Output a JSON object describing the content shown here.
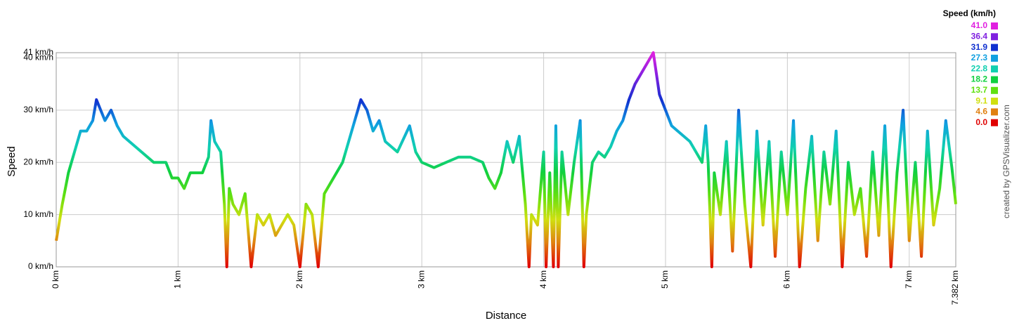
{
  "chart_data": {
    "type": "line",
    "xlabel": "Distance",
    "ylabel": "Speed",
    "x": [
      0,
      0.05,
      0.1,
      0.15,
      0.2,
      0.25,
      0.3,
      0.33,
      0.4,
      0.45,
      0.5,
      0.55,
      0.6,
      0.7,
      0.8,
      0.9,
      0.95,
      1.0,
      1.05,
      1.1,
      1.2,
      1.25,
      1.27,
      1.3,
      1.35,
      1.38,
      1.4,
      1.42,
      1.45,
      1.5,
      1.55,
      1.6,
      1.65,
      1.7,
      1.75,
      1.8,
      1.9,
      1.95,
      2.0,
      2.05,
      2.1,
      2.15,
      2.2,
      2.25,
      2.3,
      2.35,
      2.4,
      2.45,
      2.5,
      2.55,
      2.6,
      2.65,
      2.7,
      2.8,
      2.9,
      2.95,
      3.0,
      3.1,
      3.2,
      3.3,
      3.4,
      3.5,
      3.55,
      3.6,
      3.65,
      3.7,
      3.75,
      3.8,
      3.85,
      3.88,
      3.9,
      3.95,
      4.0,
      4.02,
      4.05,
      4.08,
      4.1,
      4.12,
      4.15,
      4.2,
      4.25,
      4.3,
      4.33,
      4.35,
      4.4,
      4.45,
      4.5,
      4.55,
      4.6,
      4.65,
      4.7,
      4.75,
      4.8,
      4.85,
      4.9,
      4.95,
      5.0,
      5.05,
      5.1,
      5.2,
      5.25,
      5.3,
      5.33,
      5.35,
      5.38,
      5.4,
      5.45,
      5.5,
      5.55,
      5.6,
      5.65,
      5.7,
      5.75,
      5.8,
      5.85,
      5.9,
      5.95,
      6.0,
      6.05,
      6.1,
      6.15,
      6.2,
      6.25,
      6.3,
      6.35,
      6.4,
      6.45,
      6.5,
      6.55,
      6.6,
      6.65,
      6.7,
      6.75,
      6.8,
      6.85,
      6.9,
      6.95,
      7.0,
      7.05,
      7.1,
      7.15,
      7.2,
      7.25,
      7.3,
      7.35,
      7.382
    ],
    "series": [
      {
        "name": "Speed",
        "values": [
          5,
          12,
          18,
          22,
          26,
          26,
          28,
          32,
          28,
          30,
          27,
          25,
          24,
          22,
          20,
          20,
          17,
          17,
          15,
          18,
          18,
          21,
          28,
          24,
          22,
          12,
          0,
          15,
          12,
          10,
          14,
          0,
          10,
          8,
          10,
          6,
          10,
          8,
          0,
          12,
          10,
          0,
          14,
          16,
          18,
          20,
          24,
          28,
          32,
          30,
          26,
          28,
          24,
          22,
          27,
          22,
          20,
          19,
          20,
          21,
          21,
          20,
          17,
          15,
          18,
          24,
          20,
          25,
          12,
          0,
          10,
          8,
          22,
          0,
          18,
          0,
          27,
          0,
          22,
          10,
          20,
          28,
          0,
          10,
          20,
          22,
          21,
          23,
          26,
          28,
          32,
          35,
          37,
          39,
          41,
          33,
          30,
          27,
          26,
          24,
          22,
          20,
          27,
          20,
          0,
          18,
          10,
          24,
          3,
          30,
          12,
          0,
          26,
          8,
          24,
          2,
          22,
          10,
          28,
          0,
          15,
          25,
          5,
          22,
          12,
          26,
          0,
          20,
          10,
          15,
          2,
          22,
          6,
          27,
          0,
          18,
          30,
          5,
          20,
          2,
          26,
          8,
          15,
          28,
          19,
          12
        ]
      }
    ],
    "xlim": [
      0,
      7.382
    ],
    "ylim": [
      0,
      41
    ],
    "xticks": [
      {
        "value": 0,
        "label": "0 km"
      },
      {
        "value": 1,
        "label": "1 km"
      },
      {
        "value": 2,
        "label": "2 km"
      },
      {
        "value": 3,
        "label": "3 km"
      },
      {
        "value": 4,
        "label": "4 km"
      },
      {
        "value": 5,
        "label": "5 km"
      },
      {
        "value": 6,
        "label": "6 km"
      },
      {
        "value": 7,
        "label": "7 km"
      },
      {
        "value": 7.382,
        "label": "7.382 km"
      }
    ],
    "yticks": [
      {
        "value": 0,
        "label": "0 km/h"
      },
      {
        "value": 10,
        "label": "10 km/h"
      },
      {
        "value": 20,
        "label": "20 km/h"
      },
      {
        "value": 30,
        "label": "30 km/h"
      },
      {
        "value": 40,
        "label": "40 km/h"
      },
      {
        "value": 41,
        "label": "41 km/h"
      }
    ],
    "grid": true,
    "color_scale": {
      "title": "Speed (km/h)",
      "stops": [
        {
          "value": 41,
          "label": "41.0",
          "color": "#e020e0"
        },
        {
          "value": 36.4,
          "label": "36.4",
          "color": "#8020e0"
        },
        {
          "value": 31.9,
          "label": "31.9",
          "color": "#1030d0"
        },
        {
          "value": 27.3,
          "label": "27.3",
          "color": "#10a0e0"
        },
        {
          "value": 22.8,
          "label": "22.8",
          "color": "#10d0b0"
        },
        {
          "value": 18.2,
          "label": "18.2",
          "color": "#10d040"
        },
        {
          "value": 13.7,
          "label": "13.7",
          "color": "#60e010"
        },
        {
          "value": 9.1,
          "label": "9.1",
          "color": "#d0e010"
        },
        {
          "value": 4.6,
          "label": "4.6",
          "color": "#e08010"
        },
        {
          "value": 0,
          "label": "0.0",
          "color": "#e00000"
        }
      ]
    },
    "credit": "created by GPSVisualizer.com"
  }
}
